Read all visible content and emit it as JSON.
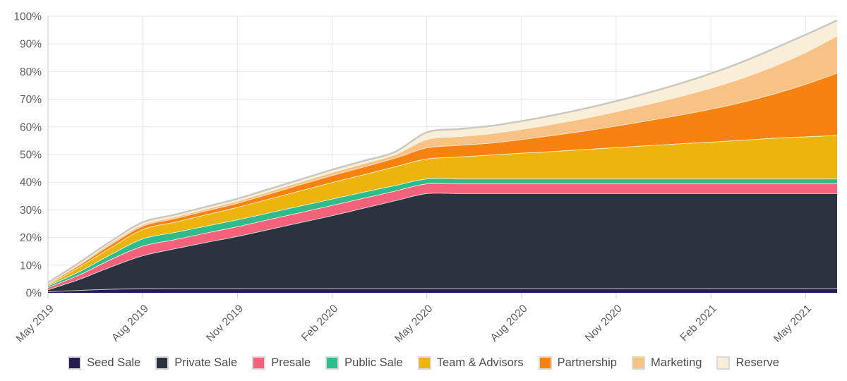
{
  "chart_data": {
    "type": "area",
    "stacked": true,
    "title": "",
    "unit": "%",
    "ylabel": "",
    "xlabel": "",
    "ylim": [
      0,
      100
    ],
    "y_tick_step": 10,
    "grid": true,
    "legend_position": "bottom",
    "x_tick_labels": [
      "May 2019",
      "Aug 2019",
      "Nov 2019",
      "Feb 2020",
      "May 2020",
      "Aug 2020",
      "Nov 2020",
      "Feb 2021",
      "May 2021"
    ],
    "x_tick_interval_points": 3,
    "n_points": 26,
    "axis_text_color": "#5f5f5f",
    "grid_color": "#e6e6e6",
    "axis_line_color": "#cccccc",
    "band_separator_color": "rgba(255,255,255,0.75)",
    "series": [
      {
        "name": "Seed Sale",
        "color": "#261a4f",
        "values": [
          0.5,
          1.0,
          1.4,
          1.6,
          1.6,
          1.6,
          1.6,
          1.6,
          1.6,
          1.6,
          1.6,
          1.6,
          1.6,
          1.6,
          1.6,
          1.6,
          1.6,
          1.6,
          1.6,
          1.6,
          1.6,
          1.6,
          1.6,
          1.6,
          1.6,
          1.6
        ]
      },
      {
        "name": "Private Sale",
        "color": "#2b333e",
        "values": [
          0.7,
          4.0,
          8.1,
          11.9,
          14.4,
          16.7,
          18.9,
          21.4,
          23.9,
          26.4,
          29.1,
          31.8,
          34.4,
          34.4,
          34.4,
          34.4,
          34.4,
          34.4,
          34.4,
          34.4,
          34.4,
          34.4,
          34.4,
          34.4,
          34.4,
          34.4
        ]
      },
      {
        "name": "Presale",
        "color": "#f4617b",
        "values": [
          0.8,
          1.6,
          2.7,
          3.5,
          3.3,
          3.4,
          3.5,
          3.6,
          3.6,
          3.7,
          3.6,
          3.5,
          3.5,
          3.5,
          3.5,
          3.5,
          3.5,
          3.5,
          3.5,
          3.5,
          3.5,
          3.5,
          3.5,
          3.5,
          3.5,
          3.5
        ]
      },
      {
        "name": "Public Sale",
        "color": "#2ebd8a",
        "values": [
          0.6,
          1.2,
          1.8,
          2.6,
          2.6,
          2.5,
          2.5,
          2.4,
          2.4,
          2.3,
          2.2,
          2.0,
          1.8,
          1.8,
          1.8,
          1.8,
          1.8,
          1.8,
          1.8,
          1.8,
          1.8,
          1.8,
          1.8,
          1.8,
          1.8,
          1.8
        ]
      },
      {
        "name": "Team & Advisors",
        "color": "#ecb40d",
        "values": [
          0.4,
          1.7,
          2.5,
          3.4,
          3.7,
          4.1,
          4.5,
          5.0,
          5.5,
          6.0,
          6.3,
          6.8,
          7.2,
          7.9,
          8.6,
          9.3,
          9.9,
          10.6,
          11.3,
          12.0,
          12.7,
          13.3,
          14.0,
          14.7,
          15.2,
          15.7
        ]
      },
      {
        "name": "Partnership",
        "color": "#f8820f",
        "values": [
          0.3,
          0.7,
          1.1,
          1.2,
          1.3,
          1.4,
          1.5,
          1.8,
          2.2,
          2.5,
          2.8,
          3.1,
          4.0,
          4.2,
          4.3,
          4.9,
          5.8,
          6.7,
          7.8,
          9.0,
          10.3,
          11.9,
          13.7,
          16.0,
          19.0,
          22.5
        ]
      },
      {
        "name": "Marketing",
        "color": "#f8c286",
        "values": [
          0.3,
          0.4,
          0.6,
          0.6,
          0.6,
          0.7,
          0.8,
          0.9,
          1.0,
          1.1,
          1.2,
          1.3,
          3.0,
          3.2,
          3.4,
          3.7,
          4.1,
          4.6,
          5.2,
          5.9,
          6.7,
          7.6,
          8.7,
          10.0,
          11.5,
          13.5
        ]
      },
      {
        "name": "Reserve",
        "color": "#f9eed7",
        "line_color": "#c9c8c2",
        "values": [
          0.1,
          0.4,
          0.5,
          0.7,
          0.7,
          0.7,
          0.7,
          0.8,
          0.8,
          0.9,
          0.9,
          0.9,
          2.5,
          2.6,
          2.7,
          2.9,
          3.1,
          3.4,
          3.7,
          4.1,
          4.6,
          5.2,
          5.8,
          6.3,
          6.3,
          5.5
        ]
      }
    ]
  }
}
